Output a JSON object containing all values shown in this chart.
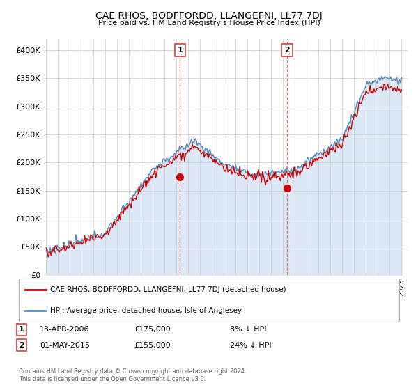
{
  "title": "CAE RHOS, BODFFORDD, LLANGEFNI, LL77 7DJ",
  "subtitle": "Price paid vs. HM Land Registry's House Price Index (HPI)",
  "legend_entry1": "CAE RHOS, BODFFORDD, LLANGEFNI, LL77 7DJ (detached house)",
  "legend_entry2": "HPI: Average price, detached house, Isle of Anglesey",
  "annotation1_date": "13-APR-2006",
  "annotation1_price": "£175,000",
  "annotation1_pct": "8% ↓ HPI",
  "annotation2_date": "01-MAY-2015",
  "annotation2_price": "£155,000",
  "annotation2_pct": "24% ↓ HPI",
  "footer": "Contains HM Land Registry data © Crown copyright and database right 2024.\nThis data is licensed under the Open Government Licence v3.0.",
  "house_color": "#cc0000",
  "hpi_color": "#5588bb",
  "hpi_fill_color": "#dce8f5",
  "vline_color": "#dd6666",
  "marker1_x": 2006.29,
  "marker1_y": 175000,
  "marker2_x": 2015.33,
  "marker2_y": 155000,
  "ylim": [
    0,
    420000
  ],
  "xlim_start": 1994.8,
  "xlim_end": 2025.5,
  "background_color": "#ffffff",
  "grid_color": "#cccccc",
  "title_fontsize": 10,
  "subtitle_fontsize": 8
}
